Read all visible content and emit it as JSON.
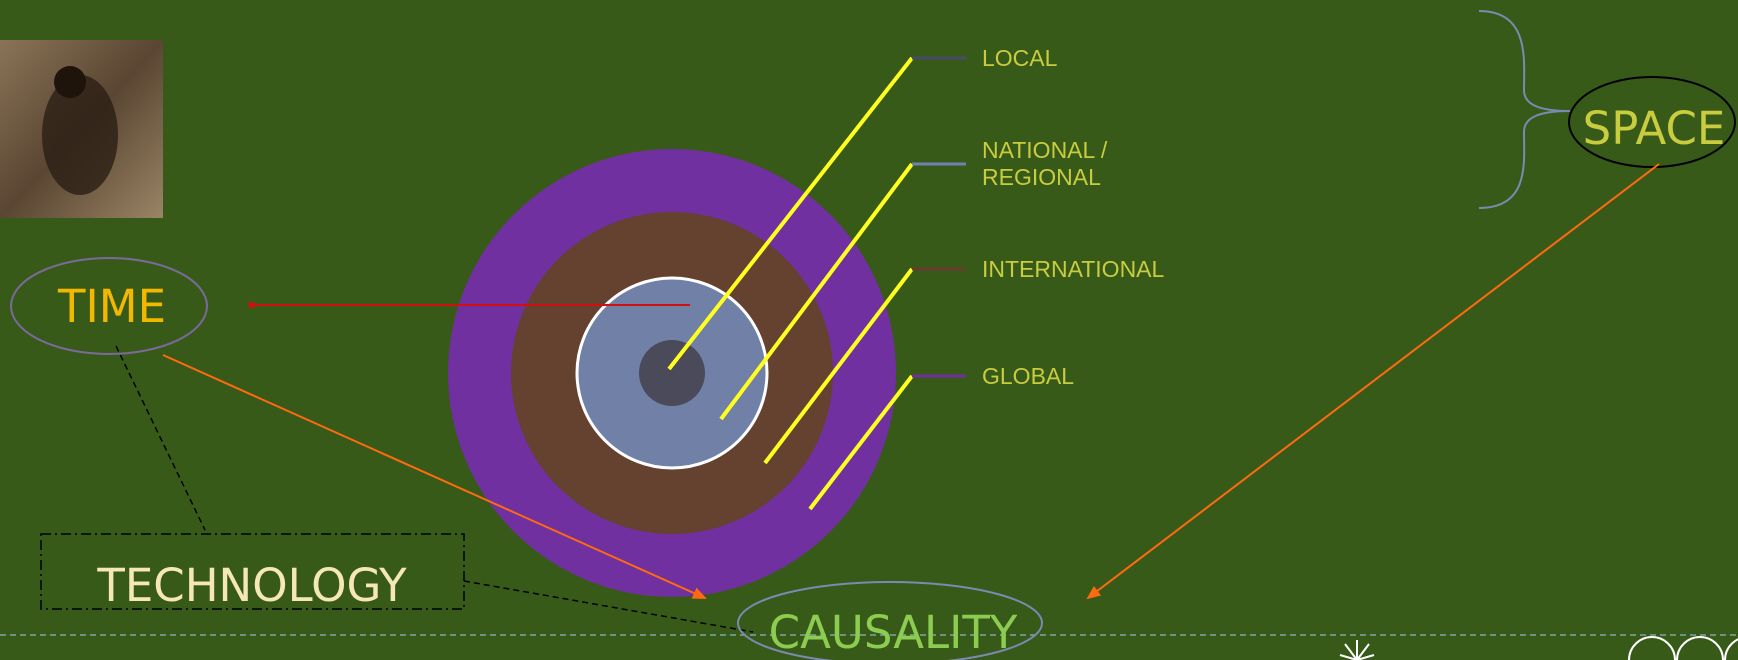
{
  "levels": [
    {
      "label": "LOCAL"
    },
    {
      "label_lines": [
        "NATIONAL /",
        "REGIONAL"
      ]
    },
    {
      "label": "INTERNATIONAL"
    },
    {
      "label": "GLOBAL"
    }
  ],
  "time": "TIME",
  "space": "SPACE",
  "technology": "TECHNOLOGY",
  "causality": "CAUSALITY"
}
